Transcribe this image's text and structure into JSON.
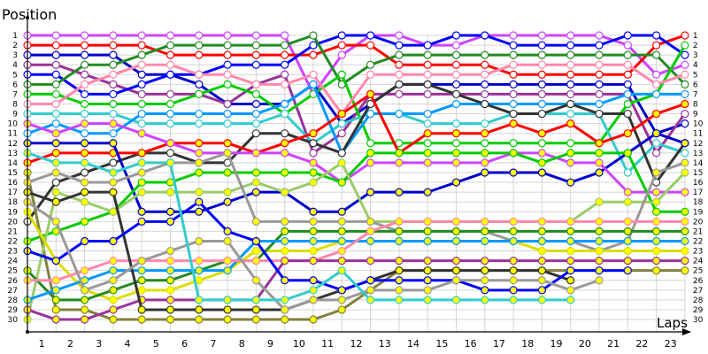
{
  "chart_data": {
    "type": "line",
    "title": "",
    "ylabel": "Position",
    "xlabel": "Laps",
    "x": [
      0,
      1,
      2,
      3,
      4,
      5,
      6,
      7,
      8,
      9,
      10,
      11,
      12,
      13,
      14,
      15,
      16,
      17,
      18,
      19,
      20,
      21,
      22,
      23
    ],
    "x_tick_labels": [
      "1",
      "2",
      "3",
      "4",
      "5",
      "6",
      "7",
      "8",
      "9",
      "10",
      "11",
      "12",
      "13",
      "14",
      "15",
      "16",
      "17",
      "18",
      "19",
      "20",
      "21",
      "22",
      "23"
    ],
    "y_tick_labels": [
      "1",
      "2",
      "3",
      "4",
      "5",
      "6",
      "7",
      "8",
      "9",
      "10",
      "11",
      "12",
      "13",
      "14",
      "15",
      "16",
      "17",
      "18",
      "19",
      "20",
      "21",
      "22",
      "23",
      "24",
      "25",
      "26",
      "27",
      "28",
      "29",
      "30"
    ],
    "ylim": [
      1,
      30
    ],
    "y_inverted": true,
    "grid": true,
    "right_axis_labels": true,
    "series": [
      {
        "name": "violet",
        "color": "#cc44ff",
        "marker": "hollow",
        "values": [
          1,
          1,
          1,
          1,
          1,
          1,
          1,
          1,
          1,
          1,
          7,
          3,
          1,
          1,
          2,
          2,
          1,
          1,
          1,
          1,
          1,
          2,
          5,
          4
        ]
      },
      {
        "name": "red",
        "color": "#ff0000",
        "marker": "hollow",
        "values": [
          2,
          2,
          2,
          2,
          2,
          3,
          3,
          3,
          3,
          3,
          3,
          2,
          2,
          4,
          4,
          4,
          4,
          5,
          5,
          5,
          5,
          5,
          2,
          1
        ]
      },
      {
        "name": "navy",
        "color": "#0000cc",
        "marker": "hollow",
        "values": [
          3,
          3,
          3,
          3,
          5,
          5,
          6,
          8,
          8,
          8,
          6,
          10,
          8,
          6,
          6,
          6,
          6,
          6,
          6,
          6,
          6,
          6,
          11,
          10
        ]
      },
      {
        "name": "purple",
        "color": "#993399",
        "marker": "hollow",
        "values": [
          4,
          4,
          5,
          6,
          7,
          7,
          7,
          8,
          6,
          5,
          13,
          11,
          7,
          7,
          7,
          7,
          7,
          7,
          7,
          7,
          7,
          7,
          13,
          9
        ]
      },
      {
        "name": "blue",
        "color": "#0000ff",
        "marker": "hollow",
        "values": [
          5,
          5,
          7,
          7,
          6,
          5,
          5,
          4,
          4,
          4,
          2,
          1,
          1,
          2,
          2,
          1,
          1,
          2,
          2,
          2,
          2,
          1,
          1,
          3
        ]
      },
      {
        "name": "green",
        "color": "#228b22",
        "marker": "hollow",
        "values": [
          6,
          6,
          4,
          4,
          3,
          2,
          2,
          2,
          2,
          2,
          1,
          6,
          4,
          3,
          3,
          3,
          3,
          3,
          3,
          3,
          3,
          3,
          3,
          6
        ]
      },
      {
        "name": "lime",
        "color": "#00cc00",
        "marker": "hollow",
        "values": [
          7,
          7,
          8,
          8,
          8,
          8,
          7,
          6,
          7,
          9,
          7,
          5,
          12,
          12,
          12,
          12,
          12,
          12,
          12,
          12,
          12,
          8,
          7,
          2
        ]
      },
      {
        "name": "pink",
        "color": "#ff88aa",
        "marker": "hollow",
        "values": [
          8,
          8,
          6,
          5,
          4,
          4,
          5,
          5,
          6,
          6,
          5,
          9,
          5,
          5,
          5,
          5,
          5,
          4,
          4,
          4,
          4,
          4,
          6,
          5
        ]
      },
      {
        "name": "teal",
        "color": "#33cccc",
        "marker": "hollow",
        "values": [
          9,
          9,
          9,
          9,
          10,
          10,
          10,
          10,
          10,
          9,
          12,
          10,
          9,
          9,
          10,
          10,
          10,
          9,
          9,
          9,
          9,
          15,
          12,
          13
        ]
      },
      {
        "name": "sky",
        "color": "#0099ff",
        "marker": "hollow",
        "values": [
          11,
          10,
          11,
          11,
          9,
          9,
          9,
          9,
          9,
          8,
          6,
          13,
          9,
          9,
          9,
          8,
          8,
          8,
          8,
          8,
          8,
          7,
          7,
          7
        ]
      },
      {
        "name": "black",
        "color": "#333333",
        "marker": "hollow",
        "values": [
          20,
          16,
          15,
          14,
          13,
          13,
          14,
          14,
          11,
          11,
          12,
          13,
          8,
          6,
          6,
          7,
          8,
          9,
          9,
          8,
          9,
          9,
          16,
          12
        ]
      },
      {
        "name": "yellow-red",
        "color": "#ff0000",
        "marker": "filled",
        "values": [
          14,
          13,
          13,
          13,
          13,
          12,
          12,
          12,
          13,
          12,
          11,
          9,
          7,
          13,
          11,
          11,
          11,
          10,
          11,
          10,
          12,
          11,
          9,
          8
        ]
      },
      {
        "name": "navy-filled",
        "color": "#0000cc",
        "marker": "filled",
        "values": [
          12,
          12,
          12,
          12,
          19,
          19,
          19,
          18,
          17,
          17,
          19,
          19,
          17,
          17,
          17,
          16,
          15,
          15,
          15,
          16,
          15,
          13,
          11,
          12
        ]
      },
      {
        "name": "magenta-filled",
        "color": "#cc44ff",
        "marker": "filled",
        "values": [
          10,
          11,
          10,
          10,
          11,
          12,
          13,
          13,
          13,
          13,
          14,
          16,
          14,
          14,
          14,
          14,
          14,
          13,
          13,
          14,
          14,
          17,
          17,
          17
        ]
      },
      {
        "name": "lime-filled",
        "color": "#00cc00",
        "marker": "filled",
        "values": [
          22,
          21,
          20,
          19,
          16,
          16,
          15,
          15,
          15,
          15,
          15,
          16,
          13,
          13,
          13,
          13,
          13,
          13,
          14,
          13,
          13,
          13,
          19,
          19
        ]
      },
      {
        "name": "olive",
        "color": "#808040",
        "marker": "filled",
        "values": [
          15,
          29,
          29,
          30,
          30,
          30,
          30,
          30,
          30,
          30,
          30,
          29,
          27,
          25,
          25,
          25,
          25,
          25,
          25,
          25,
          25,
          25,
          25,
          25
        ]
      },
      {
        "name": "lightgreen",
        "color": "#99cc66",
        "marker": "filled",
        "values": [
          30,
          17,
          18,
          19,
          17,
          17,
          17,
          17,
          16,
          17,
          16,
          14,
          20,
          20,
          20,
          20,
          20,
          20,
          20,
          20,
          18,
          18,
          18,
          15
        ]
      },
      {
        "name": "grey",
        "color": "#999999",
        "marker": "filled",
        "values": [
          16,
          15,
          16,
          16,
          15,
          14,
          14,
          13,
          20,
          20,
          20,
          20,
          20,
          21,
          21,
          21,
          21,
          22,
          22,
          22,
          23,
          22,
          15,
          14
        ]
      },
      {
        "name": "yellow",
        "color": "#dddd00",
        "marker": "filled",
        "values": [
          19,
          24,
          27,
          28,
          27,
          27,
          26,
          25,
          23,
          23,
          23,
          22,
          22,
          22,
          22,
          22,
          22,
          22,
          23,
          23,
          23,
          23,
          23,
          23
        ]
      },
      {
        "name": "darkgreen-filled",
        "color": "#228b22",
        "marker": "filled",
        "values": [
          25,
          28,
          28,
          27,
          26,
          26,
          25,
          24,
          24,
          21,
          21,
          21,
          21,
          21,
          21,
          21,
          21,
          21,
          21,
          21,
          21,
          21,
          21,
          21
        ]
      },
      {
        "name": "sky-filled",
        "color": "#0099ff",
        "marker": "filled",
        "values": [
          28,
          27,
          26,
          25,
          25,
          25,
          25,
          25,
          22,
          22,
          22,
          22,
          22,
          22,
          22,
          22,
          22,
          22,
          22,
          22,
          22,
          22,
          22,
          22
        ]
      },
      {
        "name": "pink-filled",
        "color": "#ff88aa",
        "marker": "filled",
        "values": [
          26,
          26,
          25,
          24,
          24,
          24,
          24,
          24,
          24,
          24,
          24,
          23,
          21,
          20,
          20,
          20,
          20,
          20,
          20,
          20,
          20,
          20,
          20,
          20
        ]
      },
      {
        "name": "purple-filled",
        "color": "#993399",
        "marker": "filled",
        "values": [
          29,
          30,
          30,
          29,
          28,
          28,
          28,
          28,
          28,
          24,
          24,
          24,
          24,
          24,
          24,
          24,
          24,
          24,
          24,
          24,
          24,
          24,
          24,
          24
        ]
      },
      {
        "name": "black-filled",
        "color": "#333333",
        "marker": "filled",
        "values": [
          17,
          18,
          17,
          17,
          29,
          29,
          29,
          29,
          29,
          29,
          28,
          27,
          26,
          25,
          25,
          25,
          25,
          25,
          25,
          26,
          null,
          null,
          null,
          null
        ]
      },
      {
        "name": "blue-filled",
        "color": "#0000ff",
        "marker": "filled",
        "values": [
          23,
          24,
          22,
          22,
          20,
          20,
          18,
          21,
          22,
          26,
          26,
          27,
          26,
          26,
          26,
          26,
          27,
          27,
          27,
          25,
          25,
          25,
          null,
          null
        ]
      },
      {
        "name": "grey-filled2",
        "color": "#999999",
        "marker": "filled",
        "values": [
          18,
          20,
          27,
          26,
          24,
          23,
          22,
          22,
          26,
          29,
          28,
          28,
          27,
          27,
          27,
          26,
          26,
          26,
          26,
          27,
          26,
          null,
          null,
          null
        ]
      },
      {
        "name": "teal-filled",
        "color": "#33cccc",
        "marker": "filled",
        "values": [
          13,
          14,
          14,
          15,
          14,
          14,
          28,
          28,
          28,
          28,
          27,
          25,
          28,
          28,
          28,
          28,
          28,
          28,
          28,
          28,
          null,
          null,
          null,
          null
        ]
      }
    ]
  }
}
